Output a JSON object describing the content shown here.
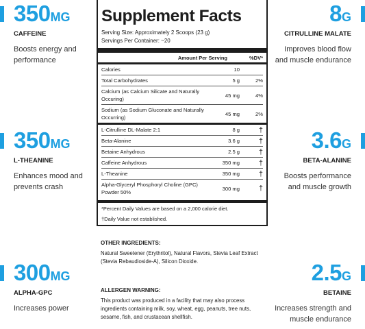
{
  "callouts": {
    "caffeine": {
      "value": "350",
      "unit": "MG",
      "name": "CAFFEINE",
      "desc": "Boosts energy and performance"
    },
    "theanine": {
      "value": "350",
      "unit": "MG",
      "name": "L-THEANINE",
      "desc": "Enhances mood and prevents crash"
    },
    "alphagpc": {
      "value": "300",
      "unit": "MG",
      "name": "ALPHA-GPC",
      "desc": "Increases power"
    },
    "citrulline": {
      "value": "8",
      "unit": "G",
      "name": "CITRULLINE MALATE",
      "desc": "Improves blood flow and muscle endurance"
    },
    "beta": {
      "value": "3.6",
      "unit": "G",
      "name": "BETA-ALANINE",
      "desc": "Boosts performance and muscle growth"
    },
    "betaine": {
      "value": "2.5",
      "unit": "G",
      "name": "BETAINE",
      "desc": "Increases strength and muscle endurance"
    }
  },
  "facts": {
    "title": "Supplement Facts",
    "serving_size": "Serving Size: Approximately 2 Scoops (23 g)",
    "servings_per_container": "Servings Per Container: ~20",
    "col_amount": "Amount Per Serving",
    "col_dv": "%DV*",
    "rows": [
      {
        "name": "Calories",
        "amount": "10",
        "dv": ""
      },
      {
        "name": "Total Carbohydrates",
        "amount": "5 g",
        "dv": "2%"
      },
      {
        "name": "Calcium (as Calcium Silicate and Naturally Occuring)",
        "amount": "45 mg",
        "dv": "4%"
      },
      {
        "name": "Sodium (as Sodium Gluconate and Naturally Occurring)",
        "amount": "45 mg",
        "dv": "2%"
      }
    ],
    "blend": [
      {
        "name": "L-Citrulline DL-Malate 2:1",
        "amount": "8 g",
        "dv": "†"
      },
      {
        "name": "Beta-Alanine",
        "amount": "3.6 g",
        "dv": "†"
      },
      {
        "name": "Betaine Anhydrous",
        "amount": "2.5 g",
        "dv": "†"
      },
      {
        "name": "Caffeine Anhydrous",
        "amount": "350 mg",
        "dv": "†"
      },
      {
        "name": "L-Theanine",
        "amount": "350 mg",
        "dv": "†"
      },
      {
        "name": "Alpha-Glyceryl Phosphoryl Choline (GPC) Powder 50%",
        "amount": "300 mg",
        "dv": "†"
      }
    ],
    "footnote1": "*Percent Daily Values are based on a 2,000 calorie diet.",
    "footnote2": "†Daily Value not established."
  },
  "other_ingredients": {
    "heading": "OTHER INGREDIENTS:",
    "text": "Natural Sweetener (Erythritol), Natural Flavors, Stevia Leaf Extract (Stevia Rebaudioside-A), Silicon Dioxide."
  },
  "allergen": {
    "heading": "ALLERGEN WARNING:",
    "text": "This product was produced in a facility that may also process ingredients containing milk, soy, wheat, egg, peanuts, tree nuts, sesame, fish, and crustacean shellfish."
  },
  "colors": {
    "accent": "#1e9fe0",
    "text": "#1d1d1d"
  }
}
